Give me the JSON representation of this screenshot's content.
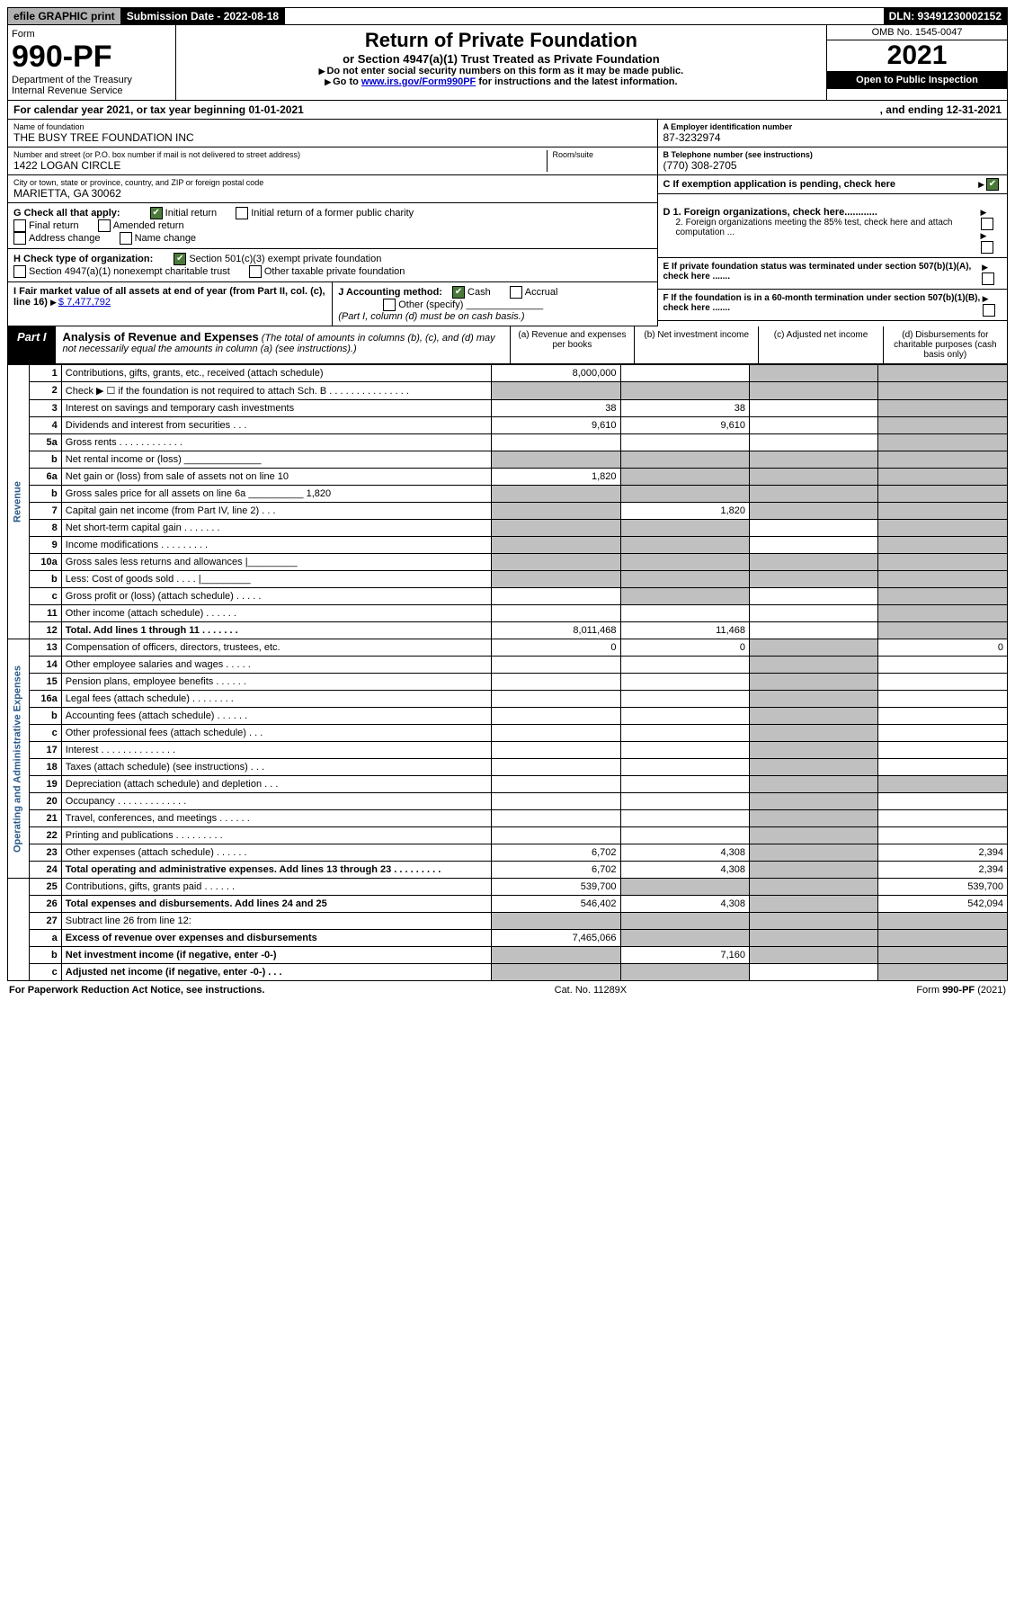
{
  "topbar": {
    "efile": "efile GRAPHIC print",
    "submission": "Submission Date - 2022-08-18",
    "dln": "DLN: 93491230002152"
  },
  "header": {
    "form_label": "Form",
    "form_num": "990-PF",
    "dept": "Department of the Treasury",
    "irs": "Internal Revenue Service",
    "title": "Return of Private Foundation",
    "subtitle": "or Section 4947(a)(1) Trust Treated as Private Foundation",
    "inst1": "Do not enter social security numbers on this form as it may be made public.",
    "inst2_pre": "Go to ",
    "inst2_link": "www.irs.gov/Form990PF",
    "inst2_post": " for instructions and the latest information.",
    "omb": "OMB No. 1545-0047",
    "year": "2021",
    "open": "Open to Public Inspection"
  },
  "calyear": {
    "left": "For calendar year 2021, or tax year beginning 01-01-2021",
    "right": ", and ending 12-31-2021"
  },
  "info": {
    "name_label": "Name of foundation",
    "name": "THE BUSY TREE FOUNDATION INC",
    "addr_label": "Number and street (or P.O. box number if mail is not delivered to street address)",
    "addr": "1422 LOGAN CIRCLE",
    "room_label": "Room/suite",
    "city_label": "City or town, state or province, country, and ZIP or foreign postal code",
    "city": "MARIETTA, GA  30062",
    "a_label": "A Employer identification number",
    "a_val": "87-3232974",
    "b_label": "B Telephone number (see instructions)",
    "b_val": "(770) 308-2705",
    "c_label": "C If exemption application is pending, check here"
  },
  "g": {
    "label": "G Check all that apply:",
    "initial": "Initial return",
    "initial_former": "Initial return of a former public charity",
    "final": "Final return",
    "amended": "Amended return",
    "address": "Address change",
    "name_change": "Name change"
  },
  "d": {
    "d1": "D 1. Foreign organizations, check here............",
    "d2": "2. Foreign organizations meeting the 85% test, check here and attach computation ..."
  },
  "h": {
    "label": "H Check type of organization:",
    "opt1": "Section 501(c)(3) exempt private foundation",
    "opt2": "Section 4947(a)(1) nonexempt charitable trust",
    "opt3": "Other taxable private foundation"
  },
  "e": "E If private foundation status was terminated under section 507(b)(1)(A), check here .......",
  "i": {
    "label": "I Fair market value of all assets at end of year (from Part II, col. (c), line 16)",
    "val": "$  7,477,792"
  },
  "j": {
    "label": "J Accounting method:",
    "cash": "Cash",
    "accrual": "Accrual",
    "other": "Other (specify)",
    "note": "(Part I, column (d) must be on cash basis.)"
  },
  "f": "F If the foundation is in a 60-month termination under section 507(b)(1)(B), check here .......",
  "part1": {
    "label": "Part I",
    "title": "Analysis of Revenue and Expenses",
    "note": "(The total of amounts in columns (b), (c), and (d) may not necessarily equal the amounts in column (a) (see instructions).)",
    "col_a": "(a) Revenue and expenses per books",
    "col_b": "(b) Net investment income",
    "col_c": "(c) Adjusted net income",
    "col_d": "(d) Disbursements for charitable purposes (cash basis only)"
  },
  "verts": {
    "revenue": "Revenue",
    "expenses": "Operating and Administrative Expenses"
  },
  "rows": [
    {
      "n": "1",
      "d": "Contributions, gifts, grants, etc., received (attach schedule)",
      "a": "8,000,000",
      "b": "",
      "c": "s",
      "dcol": "s"
    },
    {
      "n": "2",
      "d": "Check ▶ ☐ if the foundation is not required to attach Sch. B   .   .   .   .   .   .   .   .   .   .   .   .   .   .   .",
      "a": "s",
      "b": "s",
      "c": "s",
      "dcol": "s"
    },
    {
      "n": "3",
      "d": "Interest on savings and temporary cash investments",
      "a": "38",
      "b": "38",
      "c": "",
      "dcol": "s"
    },
    {
      "n": "4",
      "d": "Dividends and interest from securities   .   .   .",
      "a": "9,610",
      "b": "9,610",
      "c": "",
      "dcol": "s"
    },
    {
      "n": "5a",
      "d": "Gross rents   .   .   .   .   .   .   .   .   .   .   .   .",
      "a": "",
      "b": "",
      "c": "",
      "dcol": "s"
    },
    {
      "n": "b",
      "d": "Net rental income or (loss) ______________",
      "a": "s",
      "b": "s",
      "c": "s",
      "dcol": "s"
    },
    {
      "n": "6a",
      "d": "Net gain or (loss) from sale of assets not on line 10",
      "a": "1,820",
      "b": "s",
      "c": "s",
      "dcol": "s"
    },
    {
      "n": "b",
      "d": "Gross sales price for all assets on line 6a __________ 1,820",
      "a": "s",
      "b": "s",
      "c": "s",
      "dcol": "s"
    },
    {
      "n": "7",
      "d": "Capital gain net income (from Part IV, line 2)   .   .   .",
      "a": "s",
      "b": "1,820",
      "c": "s",
      "dcol": "s"
    },
    {
      "n": "8",
      "d": "Net short-term capital gain   .   .   .   .   .   .   .",
      "a": "s",
      "b": "s",
      "c": "",
      "dcol": "s"
    },
    {
      "n": "9",
      "d": "Income modifications  .   .   .   .   .   .   .   .   .",
      "a": "s",
      "b": "s",
      "c": "",
      "dcol": "s"
    },
    {
      "n": "10a",
      "d": "Gross sales less returns and allowances   |_________",
      "a": "s",
      "b": "s",
      "c": "s",
      "dcol": "s"
    },
    {
      "n": "b",
      "d": "Less: Cost of goods sold   .   .   .   .   |_________",
      "a": "s",
      "b": "s",
      "c": "s",
      "dcol": "s"
    },
    {
      "n": "c",
      "d": "Gross profit or (loss) (attach schedule)   .   .   .   .   .",
      "a": "",
      "b": "s",
      "c": "",
      "dcol": "s"
    },
    {
      "n": "11",
      "d": "Other income (attach schedule)   .   .   .   .   .   .",
      "a": "",
      "b": "",
      "c": "",
      "dcol": "s"
    },
    {
      "n": "12",
      "d": "Total. Add lines 1 through 11   .   .   .   .   .   .   .",
      "a": "8,011,468",
      "b": "11,468",
      "c": "",
      "dcol": "s",
      "bold": true
    },
    {
      "n": "13",
      "d": "Compensation of officers, directors, trustees, etc.",
      "a": "0",
      "b": "0",
      "c": "s",
      "dcol": "0"
    },
    {
      "n": "14",
      "d": "Other employee salaries and wages   .   .   .   .   .",
      "a": "",
      "b": "",
      "c": "s",
      "dcol": ""
    },
    {
      "n": "15",
      "d": "Pension plans, employee benefits   .   .   .   .   .   .",
      "a": "",
      "b": "",
      "c": "s",
      "dcol": ""
    },
    {
      "n": "16a",
      "d": "Legal fees (attach schedule)  .   .   .   .   .   .   .   .",
      "a": "",
      "b": "",
      "c": "s",
      "dcol": ""
    },
    {
      "n": "b",
      "d": "Accounting fees (attach schedule)  .   .   .   .   .   .",
      "a": "",
      "b": "",
      "c": "s",
      "dcol": ""
    },
    {
      "n": "c",
      "d": "Other professional fees (attach schedule)   .   .   .",
      "a": "",
      "b": "",
      "c": "s",
      "dcol": ""
    },
    {
      "n": "17",
      "d": "Interest  .   .   .   .   .   .   .   .   .   .   .   .   .   .",
      "a": "",
      "b": "",
      "c": "s",
      "dcol": ""
    },
    {
      "n": "18",
      "d": "Taxes (attach schedule) (see instructions)   .   .   .",
      "a": "",
      "b": "",
      "c": "s",
      "dcol": ""
    },
    {
      "n": "19",
      "d": "Depreciation (attach schedule) and depletion   .   .   .",
      "a": "",
      "b": "",
      "c": "s",
      "dcol": "s"
    },
    {
      "n": "20",
      "d": "Occupancy  .   .   .   .   .   .   .   .   .   .   .   .   .",
      "a": "",
      "b": "",
      "c": "s",
      "dcol": ""
    },
    {
      "n": "21",
      "d": "Travel, conferences, and meetings  .   .   .   .   .   .",
      "a": "",
      "b": "",
      "c": "s",
      "dcol": ""
    },
    {
      "n": "22",
      "d": "Printing and publications  .   .   .   .   .   .   .   .   .",
      "a": "",
      "b": "",
      "c": "s",
      "dcol": ""
    },
    {
      "n": "23",
      "d": "Other expenses (attach schedule)  .   .   .   .   .   .",
      "a": "6,702",
      "b": "4,308",
      "c": "s",
      "dcol": "2,394"
    },
    {
      "n": "24",
      "d": "Total operating and administrative expenses. Add lines 13 through 23   .   .   .   .   .   .   .   .   .",
      "a": "6,702",
      "b": "4,308",
      "c": "s",
      "dcol": "2,394",
      "bold": true
    },
    {
      "n": "25",
      "d": "Contributions, gifts, grants paid   .   .   .   .   .   .",
      "a": "539,700",
      "b": "s",
      "c": "s",
      "dcol": "539,700"
    },
    {
      "n": "26",
      "d": "Total expenses and disbursements. Add lines 24 and 25",
      "a": "546,402",
      "b": "4,308",
      "c": "s",
      "dcol": "542,094",
      "bold": true
    },
    {
      "n": "27",
      "d": "Subtract line 26 from line 12:",
      "a": "s",
      "b": "s",
      "c": "s",
      "dcol": "s"
    },
    {
      "n": "a",
      "d": "Excess of revenue over expenses and disbursements",
      "a": "7,465,066",
      "b": "s",
      "c": "s",
      "dcol": "s",
      "bold": true
    },
    {
      "n": "b",
      "d": "Net investment income (if negative, enter -0-)",
      "a": "s",
      "b": "7,160",
      "c": "s",
      "dcol": "s",
      "bold": true
    },
    {
      "n": "c",
      "d": "Adjusted net income (if negative, enter -0-)   .   .   .",
      "a": "s",
      "b": "s",
      "c": "",
      "dcol": "s",
      "bold": true
    }
  ],
  "footer": {
    "left": "For Paperwork Reduction Act Notice, see instructions.",
    "mid": "Cat. No. 11289X",
    "right": "Form 990-PF (2021)"
  }
}
